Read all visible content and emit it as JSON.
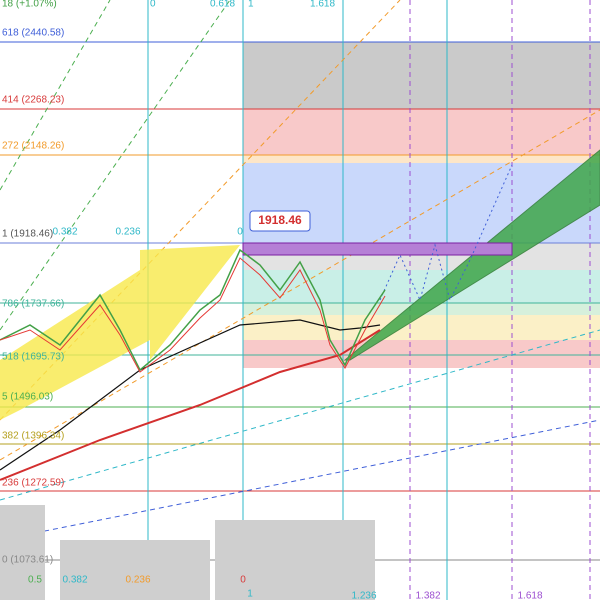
{
  "header": {
    "change": "18 (+1.07%)"
  },
  "top_labels": [
    "0",
    "0.618",
    "1",
    "1.618"
  ],
  "fib_levels": [
    "618 (2440.58)",
    "414 (2268.23)",
    "272 (2148.26)",
    "1 (1918.46)",
    "786 (1737.66)",
    "518 (1695.73)",
    "5 (1496.03)",
    "382 (1396.34)",
    "236 (1272.59)",
    "0 (1073.61)"
  ],
  "inner_labels": [
    "0.382",
    "0.236",
    "0"
  ],
  "bottom_labels": [
    "0.5",
    "0.382",
    "0.236",
    "0",
    "1",
    "1.236",
    "1.382",
    "1.618"
  ],
  "price_tag": "1918.46"
}
